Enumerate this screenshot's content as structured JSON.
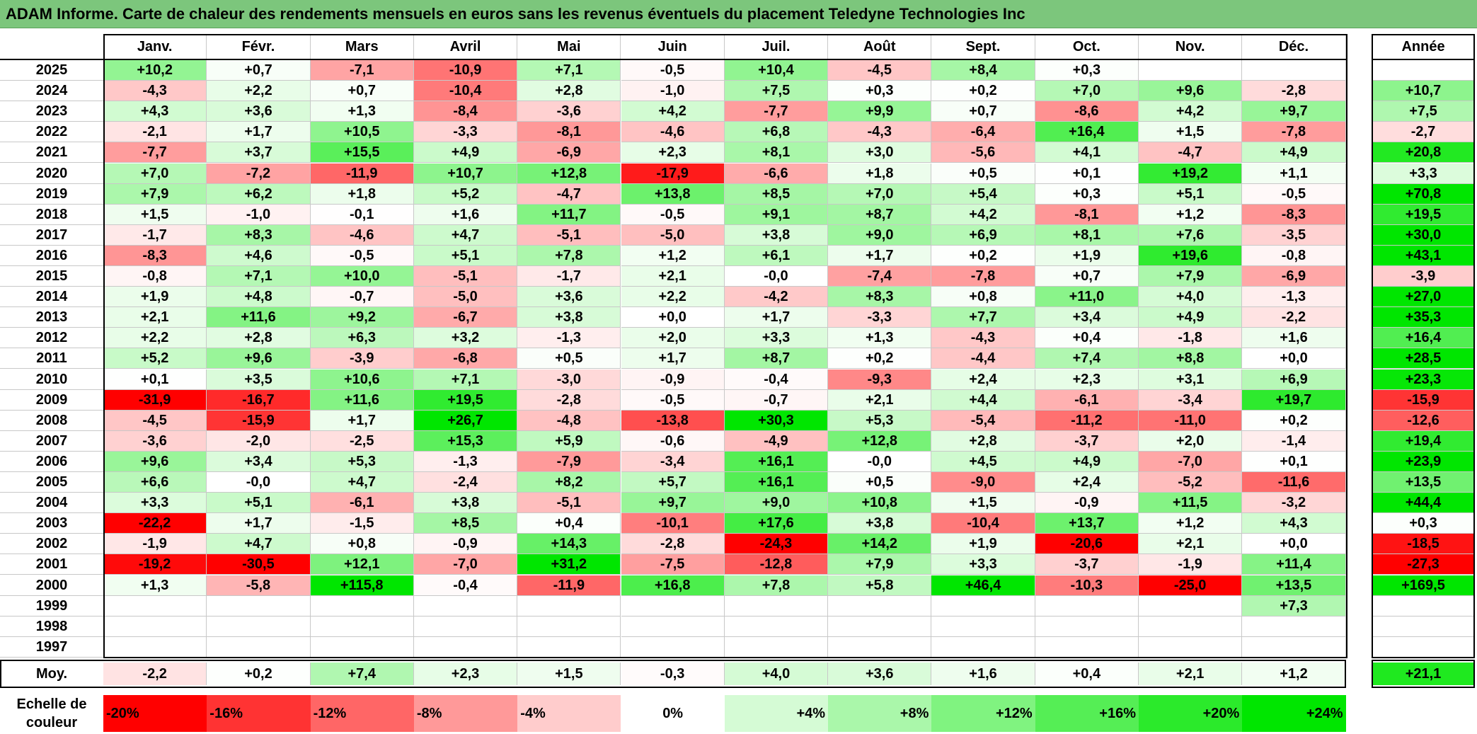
{
  "title": "ADAM Informe. Carte de chaleur des rendements mensuels en euros sans les revenus éventuels du placement Teledyne Technologies Inc",
  "colors": {
    "negative_max": "#ff0000",
    "positive_max": "#00e600",
    "neutral": "#ffffff",
    "title_bar": "#7cc67c"
  },
  "chart_data": {
    "type": "heatmap",
    "title": "ADAM Informe. Carte de chaleur des rendements mensuels en euros sans les revenus éventuels du placement Teledyne Technologies Inc",
    "months": [
      "Janv.",
      "Févr.",
      "Mars",
      "Avril",
      "Mai",
      "Juin",
      "Juil.",
      "Août",
      "Sept.",
      "Oct.",
      "Nov.",
      "Déc."
    ],
    "year_header": "Année",
    "rows": [
      {
        "year": "2025",
        "values": [
          "+10,2",
          "+0,7",
          "-7,1",
          "-10,9",
          "+7,1",
          "-0,5",
          "+10,4",
          "-4,5",
          "+8,4",
          "+0,3",
          "",
          ""
        ],
        "annual": ""
      },
      {
        "year": "2024",
        "values": [
          "-4,3",
          "+2,2",
          "+0,7",
          "-10,4",
          "+2,8",
          "-1,0",
          "+7,5",
          "+0,3",
          "+0,2",
          "+7,0",
          "+9,6",
          "-2,8"
        ],
        "annual": "+10,7"
      },
      {
        "year": "2023",
        "values": [
          "+4,3",
          "+3,6",
          "+1,3",
          "-8,4",
          "-3,6",
          "+4,2",
          "-7,7",
          "+9,9",
          "+0,7",
          "-8,6",
          "+4,2",
          "+9,7"
        ],
        "annual": "+7,5"
      },
      {
        "year": "2022",
        "values": [
          "-2,1",
          "+1,7",
          "+10,5",
          "-3,3",
          "-8,1",
          "-4,6",
          "+6,8",
          "-4,3",
          "-6,4",
          "+16,4",
          "+1,5",
          "-7,8"
        ],
        "annual": "-2,7"
      },
      {
        "year": "2021",
        "values": [
          "-7,7",
          "+3,7",
          "+15,5",
          "+4,9",
          "-6,9",
          "+2,3",
          "+8,1",
          "+3,0",
          "-5,6",
          "+4,1",
          "-4,7",
          "+4,9"
        ],
        "annual": "+20,8"
      },
      {
        "year": "2020",
        "values": [
          "+7,0",
          "-7,2",
          "-11,9",
          "+10,7",
          "+12,8",
          "-17,9",
          "-6,6",
          "+1,8",
          "+0,5",
          "+0,1",
          "+19,2",
          "+1,1"
        ],
        "annual": "+3,3"
      },
      {
        "year": "2019",
        "values": [
          "+7,9",
          "+6,2",
          "+1,8",
          "+5,2",
          "-4,7",
          "+13,8",
          "+8,5",
          "+7,0",
          "+5,4",
          "+0,3",
          "+5,1",
          "-0,5"
        ],
        "annual": "+70,8"
      },
      {
        "year": "2018",
        "values": [
          "+1,5",
          "-1,0",
          "-0,1",
          "+1,6",
          "+11,7",
          "-0,5",
          "+9,1",
          "+8,7",
          "+4,2",
          "-8,1",
          "+1,2",
          "-8,3"
        ],
        "annual": "+19,5"
      },
      {
        "year": "2017",
        "values": [
          "-1,7",
          "+8,3",
          "-4,6",
          "+4,7",
          "-5,1",
          "-5,0",
          "+3,8",
          "+9,0",
          "+6,9",
          "+8,1",
          "+7,6",
          "-3,5"
        ],
        "annual": "+30,0"
      },
      {
        "year": "2016",
        "values": [
          "-8,3",
          "+4,6",
          "-0,5",
          "+5,1",
          "+7,8",
          "+1,2",
          "+6,1",
          "+1,7",
          "+0,2",
          "+1,9",
          "+19,6",
          "-0,8"
        ],
        "annual": "+43,1"
      },
      {
        "year": "2015",
        "values": [
          "-0,8",
          "+7,1",
          "+10,0",
          "-5,1",
          "-1,7",
          "+2,1",
          "-0,0",
          "-7,4",
          "-7,8",
          "+0,7",
          "+7,9",
          "-6,9"
        ],
        "annual": "-3,9"
      },
      {
        "year": "2014",
        "values": [
          "+1,9",
          "+4,8",
          "-0,7",
          "-5,0",
          "+3,6",
          "+2,2",
          "-4,2",
          "+8,3",
          "+0,8",
          "+11,0",
          "+4,0",
          "-1,3"
        ],
        "annual": "+27,0"
      },
      {
        "year": "2013",
        "values": [
          "+2,1",
          "+11,6",
          "+9,2",
          "-6,7",
          "+3,8",
          "+0,0",
          "+1,7",
          "-3,3",
          "+7,7",
          "+3,4",
          "+4,9",
          "-2,2"
        ],
        "annual": "+35,3"
      },
      {
        "year": "2012",
        "values": [
          "+2,2",
          "+2,8",
          "+6,3",
          "+3,2",
          "-1,3",
          "+2,0",
          "+3,3",
          "+1,3",
          "-4,3",
          "+0,4",
          "-1,8",
          "+1,6"
        ],
        "annual": "+16,4"
      },
      {
        "year": "2011",
        "values": [
          "+5,2",
          "+9,6",
          "-3,9",
          "-6,8",
          "+0,5",
          "+1,7",
          "+8,7",
          "+0,2",
          "-4,4",
          "+7,4",
          "+8,8",
          "+0,0"
        ],
        "annual": "+28,5"
      },
      {
        "year": "2010",
        "values": [
          "+0,1",
          "+3,5",
          "+10,6",
          "+7,1",
          "-3,0",
          "-0,9",
          "-0,4",
          "-9,3",
          "+2,4",
          "+2,3",
          "+3,1",
          "+6,9"
        ],
        "annual": "+23,3"
      },
      {
        "year": "2009",
        "values": [
          "-31,9",
          "-16,7",
          "+11,6",
          "+19,5",
          "-2,8",
          "-0,5",
          "-0,7",
          "+2,1",
          "+4,4",
          "-6,1",
          "-3,4",
          "+19,7"
        ],
        "annual": "-15,9"
      },
      {
        "year": "2008",
        "values": [
          "-4,5",
          "-15,9",
          "+1,7",
          "+26,7",
          "-4,8",
          "-13,8",
          "+30,3",
          "+5,3",
          "-5,4",
          "-11,2",
          "-11,0",
          "+0,2"
        ],
        "annual": "-12,6"
      },
      {
        "year": "2007",
        "values": [
          "-3,6",
          "-2,0",
          "-2,5",
          "+15,3",
          "+5,9",
          "-0,6",
          "-4,9",
          "+12,8",
          "+2,8",
          "-3,7",
          "+2,0",
          "-1,4"
        ],
        "annual": "+19,4"
      },
      {
        "year": "2006",
        "values": [
          "+9,6",
          "+3,4",
          "+5,3",
          "-1,3",
          "-7,9",
          "-3,4",
          "+16,1",
          "-0,0",
          "+4,5",
          "+4,9",
          "-7,0",
          "+0,1"
        ],
        "annual": "+23,9"
      },
      {
        "year": "2005",
        "values": [
          "+6,6",
          "-0,0",
          "+4,7",
          "-2,4",
          "+8,2",
          "+5,7",
          "+16,1",
          "+0,5",
          "-9,0",
          "+2,4",
          "-5,2",
          "-11,6"
        ],
        "annual": "+13,5"
      },
      {
        "year": "2004",
        "values": [
          "+3,3",
          "+5,1",
          "-6,1",
          "+3,8",
          "-5,1",
          "+9,7",
          "+9,0",
          "+10,8",
          "+1,5",
          "-0,9",
          "+11,5",
          "-3,2"
        ],
        "annual": "+44,4"
      },
      {
        "year": "2003",
        "values": [
          "-22,2",
          "+1,7",
          "-1,5",
          "+8,5",
          "+0,4",
          "-10,1",
          "+17,6",
          "+3,8",
          "-10,4",
          "+13,7",
          "+1,2",
          "+4,3"
        ],
        "annual": "+0,3"
      },
      {
        "year": "2002",
        "values": [
          "-1,9",
          "+4,7",
          "+0,8",
          "-0,9",
          "+14,3",
          "-2,8",
          "-24,3",
          "+14,2",
          "+1,9",
          "-20,6",
          "+2,1",
          "+0,0"
        ],
        "annual": "-18,5"
      },
      {
        "year": "2001",
        "values": [
          "-19,2",
          "-30,5",
          "+12,1",
          "-7,0",
          "+31,2",
          "-7,5",
          "-12,8",
          "+7,9",
          "+3,3",
          "-3,7",
          "-1,9",
          "+11,4"
        ],
        "annual": "-27,3"
      },
      {
        "year": "2000",
        "values": [
          "+1,3",
          "-5,8",
          "+115,8",
          "-0,4",
          "-11,9",
          "+16,8",
          "+7,8",
          "+5,8",
          "+46,4",
          "-10,3",
          "-25,0",
          "+13,5"
        ],
        "annual": "+169,5"
      },
      {
        "year": "1999",
        "values": [
          "",
          "",
          "",
          "",
          "",
          "",
          "",
          "",
          "",
          "",
          "",
          "+7,3"
        ],
        "annual": ""
      },
      {
        "year": "1998",
        "values": [
          "",
          "",
          "",
          "",
          "",
          "",
          "",
          "",
          "",
          "",
          "",
          ""
        ],
        "annual": ""
      },
      {
        "year": "1997",
        "values": [
          "",
          "",
          "",
          "",
          "",
          "",
          "",
          "",
          "",
          "",
          "",
          ""
        ],
        "annual": ""
      }
    ],
    "average": {
      "label": "Moy.",
      "values": [
        "-2,2",
        "+0,2",
        "+7,4",
        "+2,3",
        "+1,5",
        "-0,3",
        "+4,0",
        "+3,6",
        "+1,6",
        "+0,4",
        "+2,1",
        "+1,2"
      ],
      "annual": "+21,1"
    },
    "scale": {
      "label_line1": "Echelle de",
      "label_line2": "couleur",
      "steps": [
        {
          "label": "-20%",
          "value": -20
        },
        {
          "label": "-16%",
          "value": -16
        },
        {
          "label": "-12%",
          "value": -12
        },
        {
          "label": "-8%",
          "value": -8
        },
        {
          "label": "-4%",
          "value": -4
        },
        {
          "label": "0%",
          "value": 0
        },
        {
          "label": "+4%",
          "value": 4
        },
        {
          "label": "+8%",
          "value": 8
        },
        {
          "label": "+12%",
          "value": 12
        },
        {
          "label": "+16%",
          "value": 16
        },
        {
          "label": "+20%",
          "value": 20
        },
        {
          "label": "+24%",
          "value": 24
        }
      ]
    }
  }
}
